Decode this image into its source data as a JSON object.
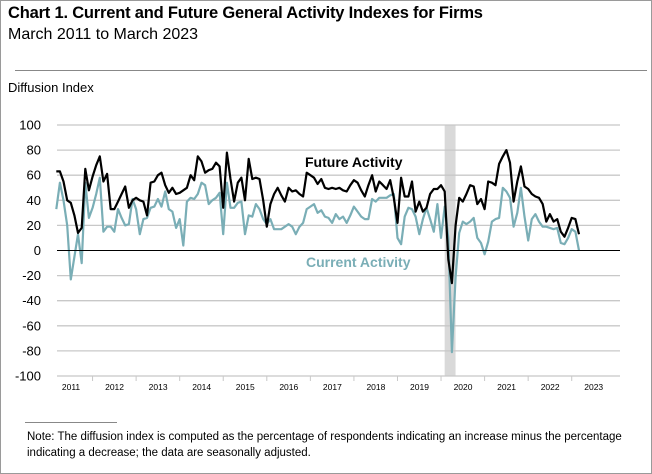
{
  "header": {
    "title": "Chart 1. Current and Future General Activity Indexes for Firms",
    "subtitle": "March 2011 to March 2023"
  },
  "note": "Note:  The diffusion index is computed as the percentage of respondents indicating an increase minus the percentage indicating a decrease; the data are seasonally adjusted.",
  "chart_data": {
    "type": "line",
    "title": "Chart 1. Current and Future General Activity Indexes for Firms",
    "subtitle": "March 2011 to March 2023",
    "ylabel": "Diffusion Index",
    "xlabel": "",
    "ylim": [
      -100,
      100
    ],
    "yticks": [
      "100",
      "80",
      "60",
      "40",
      "20",
      "0",
      "-20",
      "-40",
      "-60",
      "-80",
      "-100"
    ],
    "xticks": [
      "2011",
      "2012",
      "2013",
      "2014",
      "2015",
      "2016",
      "2017",
      "2018",
      "2019",
      "2020",
      "2021",
      "2022",
      "2023"
    ],
    "grid": true,
    "x_start": "2011-03",
    "x_frequency": "monthly",
    "shaded_period": {
      "from": "2020-02",
      "to": "2020-04",
      "color": "#d9d9d9"
    },
    "series": [
      {
        "name": "Future Activity",
        "color": "#000000",
        "values": [
          63,
          63,
          55,
          40,
          38,
          28,
          14,
          18,
          65,
          48,
          59,
          68,
          75,
          55,
          61,
          33,
          33,
          39,
          45,
          51,
          34,
          40,
          42,
          40,
          39,
          28,
          54,
          55,
          60,
          62,
          52,
          46,
          50,
          45,
          46,
          48,
          50,
          60,
          56,
          75,
          71,
          62,
          64,
          65,
          70,
          67,
          34,
          78,
          57,
          39,
          54,
          58,
          40,
          73,
          57,
          58,
          57,
          40,
          19,
          37,
          45,
          50,
          44,
          39,
          50,
          47,
          48,
          45,
          43,
          62,
          60,
          58,
          53,
          57,
          50,
          49,
          50,
          49,
          50,
          48,
          47,
          52,
          56,
          54,
          48,
          43,
          52,
          60,
          47,
          55,
          52,
          49,
          56,
          42,
          22,
          58,
          43,
          43,
          55,
          31,
          39,
          31,
          34,
          45,
          49,
          49,
          52,
          47,
          -7,
          -26,
          20,
          42,
          39,
          45,
          52,
          51,
          37,
          41,
          33,
          55,
          54,
          52,
          69,
          75,
          80,
          70,
          39,
          55,
          67,
          51,
          49,
          45,
          43,
          42,
          37,
          23,
          29,
          23,
          25,
          15,
          11,
          18,
          26,
          25,
          13
        ]
      },
      {
        "name": "Current Activity",
        "color": "#7aaeb6",
        "values": [
          33,
          54,
          40,
          20,
          -23,
          -5,
          13,
          -10,
          54,
          26,
          34,
          45,
          58,
          15,
          19,
          19,
          15,
          33,
          26,
          20,
          21,
          41,
          33,
          13,
          25,
          26,
          34,
          35,
          41,
          35,
          47,
          33,
          31,
          18,
          25,
          4,
          39,
          42,
          41,
          45,
          54,
          52,
          37,
          40,
          42,
          46,
          13,
          54,
          34,
          34,
          38,
          39,
          13,
          28,
          27,
          37,
          33,
          25,
          21,
          25,
          17,
          17,
          17,
          19,
          21,
          19,
          13,
          19,
          22,
          33,
          35,
          37,
          30,
          32,
          27,
          26,
          22,
          29,
          25,
          27,
          22,
          28,
          35,
          31,
          27,
          25,
          25,
          41,
          39,
          42,
          42,
          42,
          44,
          45,
          10,
          5,
          27,
          34,
          33,
          27,
          13,
          25,
          34,
          25,
          15,
          37,
          10,
          35,
          10,
          -81,
          -21,
          14,
          23,
          21,
          23,
          26,
          10,
          6,
          -3,
          7,
          23,
          25,
          26,
          50,
          47,
          42,
          19,
          30,
          50,
          27,
          8,
          25,
          29,
          23,
          19,
          19,
          18,
          17,
          18,
          6,
          5,
          10,
          17,
          15,
          0
        ]
      }
    ]
  }
}
